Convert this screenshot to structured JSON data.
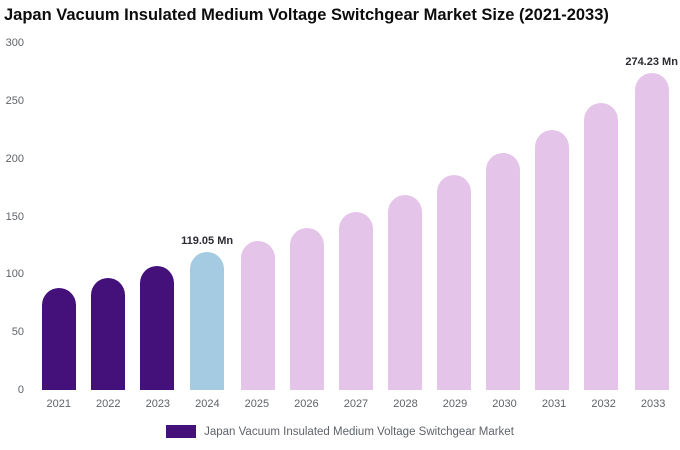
{
  "title": "Japan Vacuum Insulated Medium Voltage Switchgear Market Size (2021-2033)",
  "legend": {
    "label": "Japan Vacuum Insulated Medium Voltage Switchgear Market",
    "color": "#44107A"
  },
  "colors": {
    "historical": "#44107A",
    "current_year": "#A5CBE2",
    "forecast": "#E4C4E8"
  },
  "chart_data": {
    "type": "bar",
    "title": "Japan Vacuum Insulated Medium Voltage Switchgear Market Size (2021-2033)",
    "categories": [
      "2021",
      "2022",
      "2023",
      "2024",
      "2025",
      "2026",
      "2027",
      "2028",
      "2029",
      "2030",
      "2031",
      "2032",
      "2033"
    ],
    "values": [
      88,
      97,
      107,
      119.05,
      129,
      140,
      154,
      169,
      186,
      205,
      225,
      248,
      274.23
    ],
    "bar_colors": [
      "#44107A",
      "#44107A",
      "#44107A",
      "#A5CBE2",
      "#E4C4E8",
      "#E4C4E8",
      "#E4C4E8",
      "#E4C4E8",
      "#E4C4E8",
      "#E4C4E8",
      "#E4C4E8",
      "#E4C4E8",
      "#E4C4E8"
    ],
    "annotations": [
      {
        "index": 3,
        "text": "119.05 Mn"
      },
      {
        "index": 12,
        "text": "274.23 Mn"
      }
    ],
    "xlabel": "",
    "ylabel": "",
    "ylim": [
      0,
      300
    ],
    "yticks": [
      0,
      50,
      100,
      150,
      200,
      250,
      300
    ],
    "grid": false,
    "legend_position": "bottom",
    "legend_entries": [
      "Japan Vacuum Insulated Medium Voltage Switchgear Market"
    ],
    "unit": "Mn"
  }
}
